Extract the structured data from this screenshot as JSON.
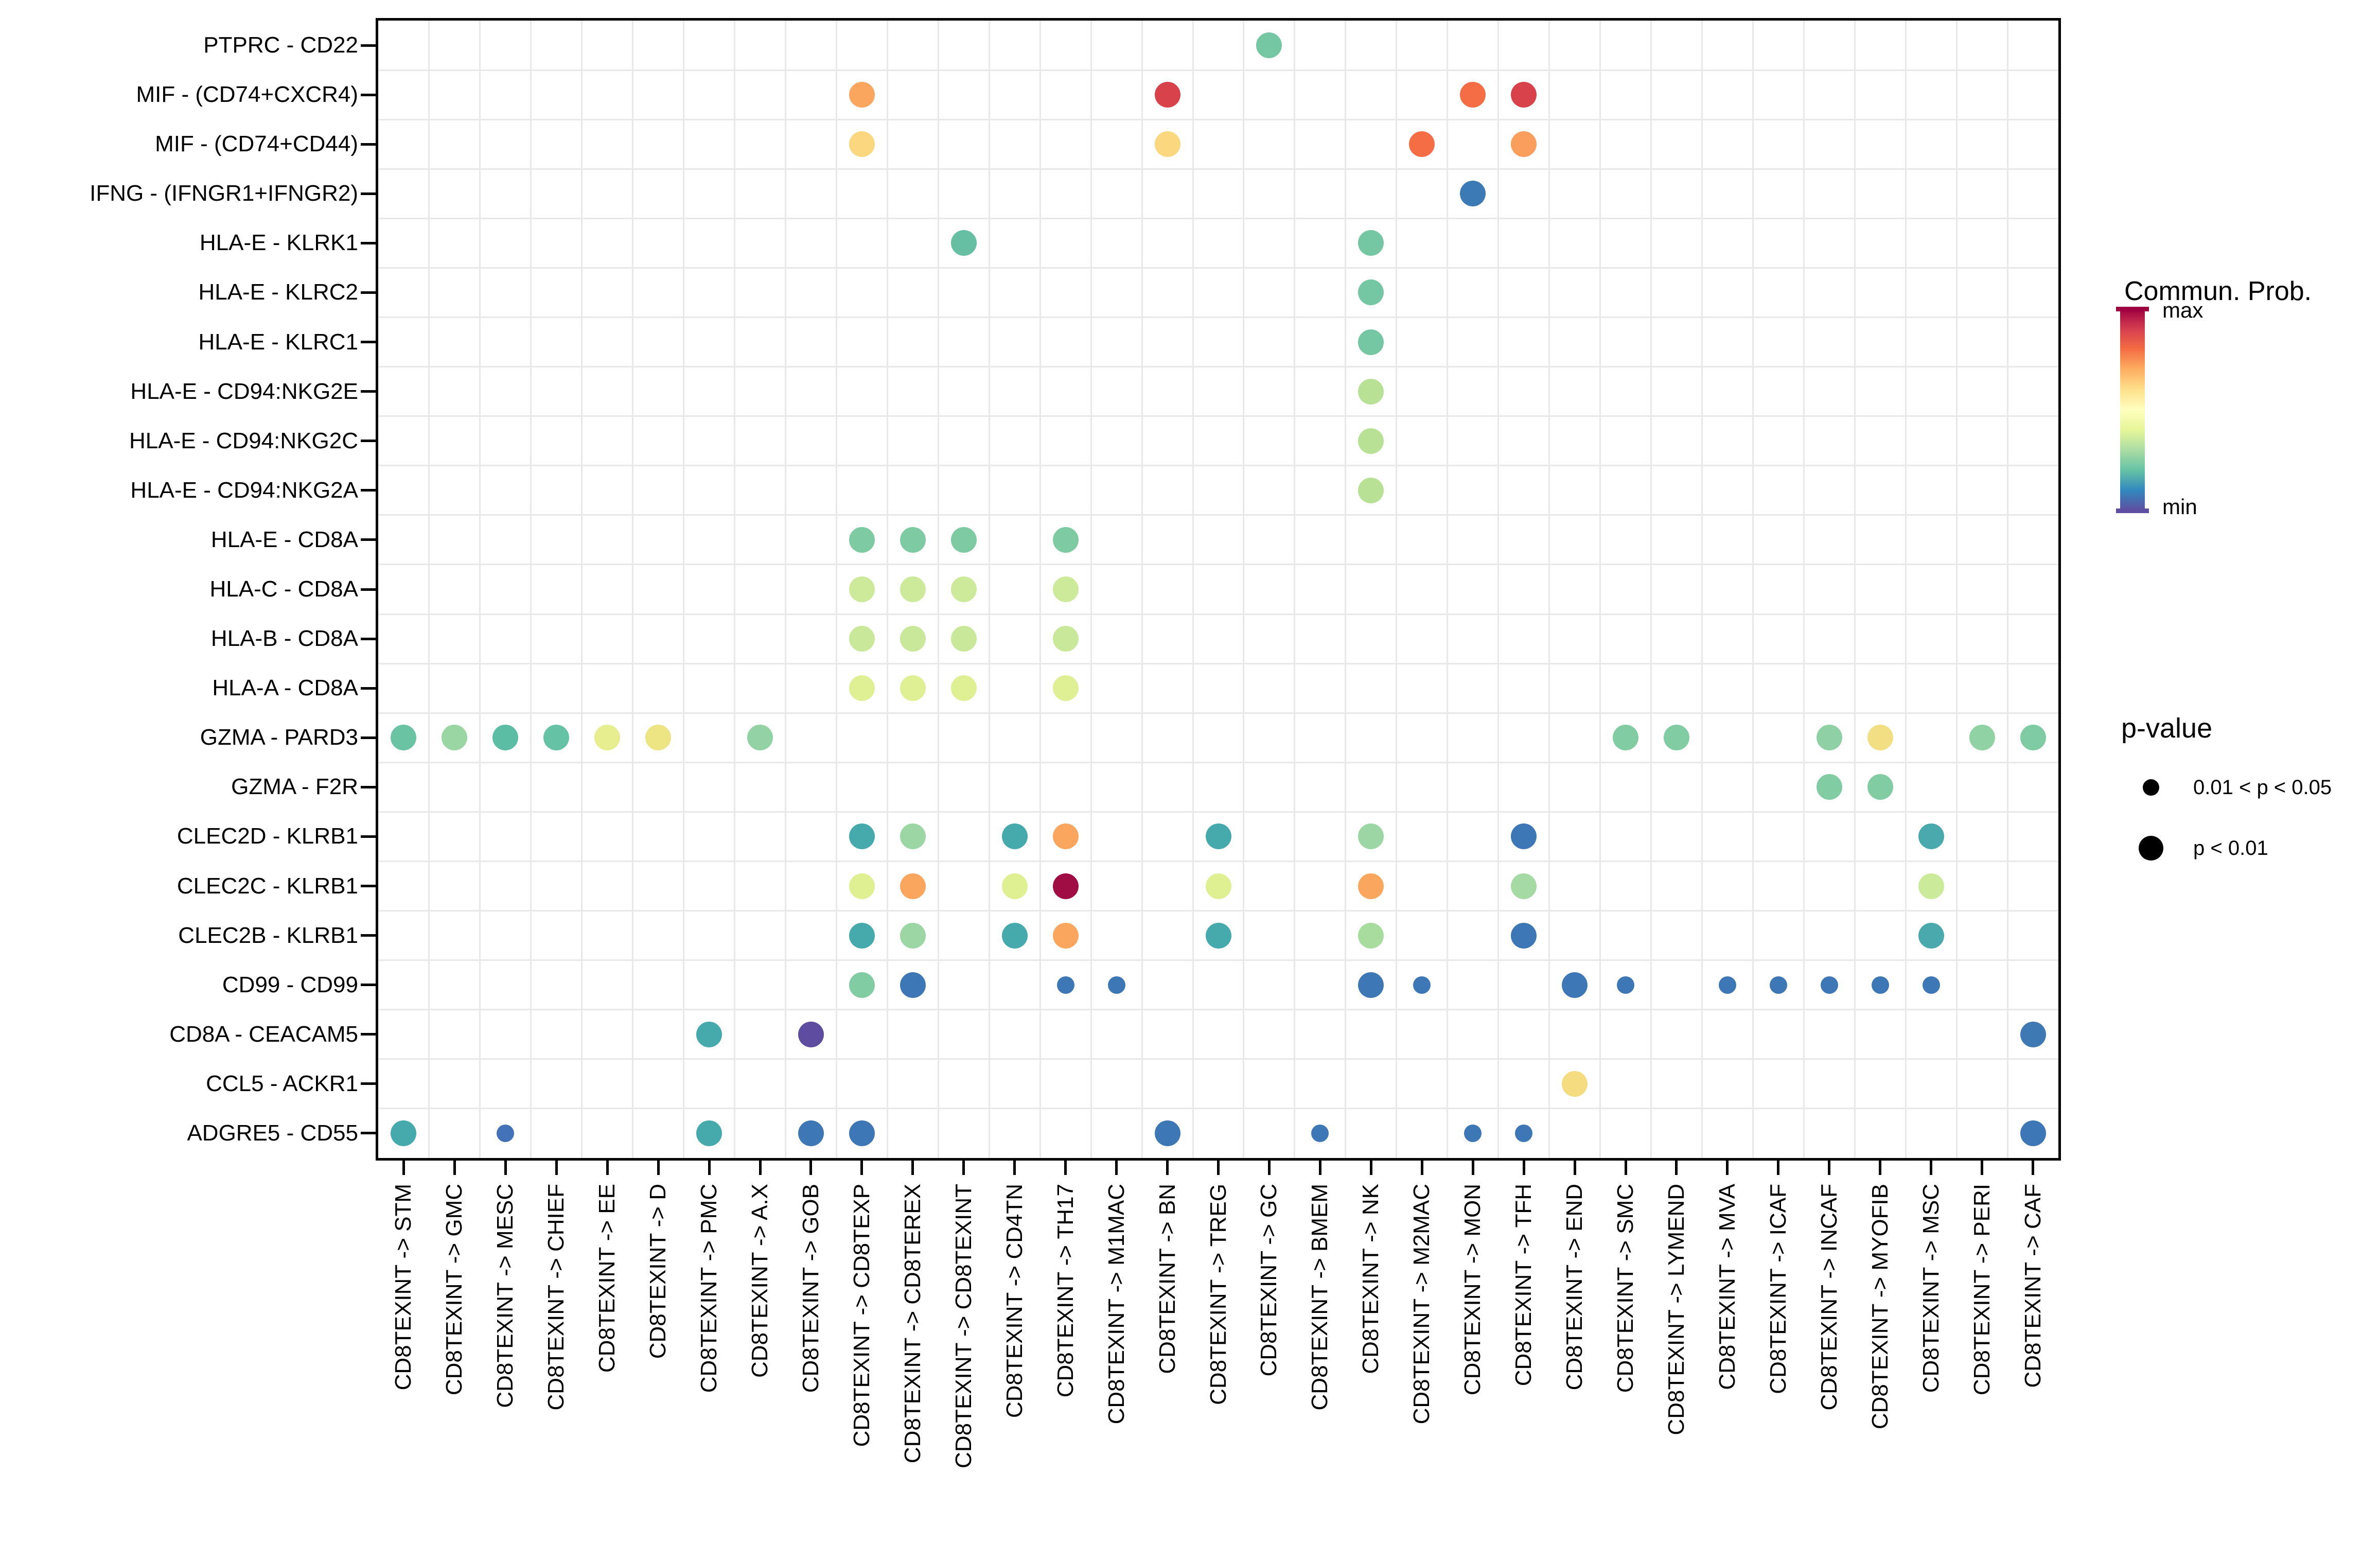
{
  "legend": {
    "colorbar": {
      "title": "Commun. Prob.",
      "max_label": "max",
      "min_label": "min",
      "gradient": [
        "#9E0142",
        "#D53E4F",
        "#F46D43",
        "#FDAE61",
        "#FEE08B",
        "#FFFFBF",
        "#E6F598",
        "#ABDDA4",
        "#66C2A5",
        "#3288BD",
        "#5E4FA2"
      ]
    },
    "pvalue": {
      "title": "p-value",
      "items": [
        {
          "label": "0.01 < p < 0.05",
          "size": "small"
        },
        {
          "label": "p < 0.01",
          "size": "large"
        }
      ]
    }
  },
  "chart_data": {
    "type": "scatter",
    "subtype": "dot-plot-bubble",
    "title": "",
    "xlabel": "",
    "ylabel": "",
    "grid": "on-category-boundaries",
    "x_tick_rotation": 90,
    "size_encoding": {
      "small": "0.01 < p < 0.05",
      "large": "p < 0.01"
    },
    "color_encoding": {
      "scale": "Spectral-reversed",
      "min_label": "min",
      "max_label": "max",
      "title": "Commun. Prob."
    },
    "x_categories": [
      "CD8TEXINT -> STM",
      "CD8TEXINT -> GMC",
      "CD8TEXINT -> MESC",
      "CD8TEXINT -> CHIEF",
      "CD8TEXINT -> EE",
      "CD8TEXINT -> D",
      "CD8TEXINT -> PMC",
      "CD8TEXINT -> A.X",
      "CD8TEXINT -> GOB",
      "CD8TEXINT -> CD8TEXP",
      "CD8TEXINT -> CD8TEREX",
      "CD8TEXINT -> CD8TEXINT",
      "CD8TEXINT -> CD4TN",
      "CD8TEXINT -> TH17",
      "CD8TEXINT -> M1MAC",
      "CD8TEXINT -> BN",
      "CD8TEXINT -> TREG",
      "CD8TEXINT -> GC",
      "CD8TEXINT -> BMEM",
      "CD8TEXINT -> NK",
      "CD8TEXINT -> M2MAC",
      "CD8TEXINT -> MON",
      "CD8TEXINT -> TFH",
      "CD8TEXINT -> END",
      "CD8TEXINT -> SMC",
      "CD8TEXINT -> LYMEND",
      "CD8TEXINT -> MVA",
      "CD8TEXINT -> ICAF",
      "CD8TEXINT -> INCAF",
      "CD8TEXINT -> MYOFIB",
      "CD8TEXINT -> MSC",
      "CD8TEXINT -> PERI",
      "CD8TEXINT -> CAF"
    ],
    "y_categories": [
      "PTPRC - CD22",
      "MIF - (CD74+CXCR4)",
      "MIF - (CD74+CD44)",
      "IFNG - (IFNGR1+IFNGR2)",
      "HLA-E - KLRK1",
      "HLA-E - KLRC2",
      "HLA-E - KLRC1",
      "HLA-E - CD94:NKG2E",
      "HLA-E - CD94:NKG2C",
      "HLA-E - CD94:NKG2A",
      "HLA-E - CD8A",
      "HLA-C - CD8A",
      "HLA-B - CD8A",
      "HLA-A - CD8A",
      "GZMA - PARD3",
      "GZMA - F2R",
      "CLEC2D - KLRB1",
      "CLEC2C - KLRB1",
      "CLEC2B - KLRB1",
      "CD99 - CD99",
      "CD8A - CEACAM5",
      "CCL5 - ACKR1",
      "ADGRE5 - CD55"
    ],
    "points": [
      {
        "row": 0,
        "col": 17,
        "color": "#74C7A2",
        "size": "large"
      },
      {
        "row": 1,
        "col": 9,
        "color": "#FAA65E",
        "size": "large"
      },
      {
        "row": 1,
        "col": 15,
        "color": "#D8434B",
        "size": "large"
      },
      {
        "row": 1,
        "col": 21,
        "color": "#F46D44",
        "size": "large"
      },
      {
        "row": 1,
        "col": 22,
        "color": "#D8434B",
        "size": "large"
      },
      {
        "row": 2,
        "col": 9,
        "color": "#FBD87F",
        "size": "large"
      },
      {
        "row": 2,
        "col": 15,
        "color": "#FBD87F",
        "size": "large"
      },
      {
        "row": 2,
        "col": 20,
        "color": "#F46D44",
        "size": "large"
      },
      {
        "row": 2,
        "col": 22,
        "color": "#F99E5C",
        "size": "large"
      },
      {
        "row": 3,
        "col": 21,
        "color": "#3C7AB6",
        "size": "large"
      },
      {
        "row": 4,
        "col": 11,
        "color": "#66BFA2",
        "size": "large"
      },
      {
        "row": 4,
        "col": 19,
        "color": "#74C7A2",
        "size": "large"
      },
      {
        "row": 5,
        "col": 19,
        "color": "#74C7A2",
        "size": "large"
      },
      {
        "row": 6,
        "col": 19,
        "color": "#74C7A2",
        "size": "large"
      },
      {
        "row": 7,
        "col": 19,
        "color": "#B8E195",
        "size": "large"
      },
      {
        "row": 8,
        "col": 19,
        "color": "#B8E195",
        "size": "large"
      },
      {
        "row": 9,
        "col": 19,
        "color": "#B8E195",
        "size": "large"
      },
      {
        "row": 10,
        "col": 9,
        "color": "#7ECAA3",
        "size": "large"
      },
      {
        "row": 10,
        "col": 10,
        "color": "#7ECAA3",
        "size": "large"
      },
      {
        "row": 10,
        "col": 11,
        "color": "#7ECAA3",
        "size": "large"
      },
      {
        "row": 10,
        "col": 13,
        "color": "#7ECAA3",
        "size": "large"
      },
      {
        "row": 11,
        "col": 9,
        "color": "#CDEA9B",
        "size": "large"
      },
      {
        "row": 11,
        "col": 10,
        "color": "#CDEA9B",
        "size": "large"
      },
      {
        "row": 11,
        "col": 11,
        "color": "#CDEA9B",
        "size": "large"
      },
      {
        "row": 11,
        "col": 13,
        "color": "#CDEA9B",
        "size": "large"
      },
      {
        "row": 12,
        "col": 9,
        "color": "#C9E899",
        "size": "large"
      },
      {
        "row": 12,
        "col": 10,
        "color": "#C9E899",
        "size": "large"
      },
      {
        "row": 12,
        "col": 11,
        "color": "#C9E899",
        "size": "large"
      },
      {
        "row": 12,
        "col": 13,
        "color": "#C9E899",
        "size": "large"
      },
      {
        "row": 13,
        "col": 9,
        "color": "#DFF094",
        "size": "large"
      },
      {
        "row": 13,
        "col": 10,
        "color": "#DFF094",
        "size": "large"
      },
      {
        "row": 13,
        "col": 11,
        "color": "#DFF094",
        "size": "large"
      },
      {
        "row": 13,
        "col": 13,
        "color": "#DFF094",
        "size": "large"
      },
      {
        "row": 14,
        "col": 0,
        "color": "#6AC4A4",
        "size": "large"
      },
      {
        "row": 14,
        "col": 1,
        "color": "#9AD5A4",
        "size": "large"
      },
      {
        "row": 14,
        "col": 2,
        "color": "#5BBEA4",
        "size": "large"
      },
      {
        "row": 14,
        "col": 3,
        "color": "#66C2A5",
        "size": "large"
      },
      {
        "row": 14,
        "col": 4,
        "color": "#E6EE8F",
        "size": "large"
      },
      {
        "row": 14,
        "col": 5,
        "color": "#EDE483",
        "size": "large"
      },
      {
        "row": 14,
        "col": 7,
        "color": "#93D2A4",
        "size": "large"
      },
      {
        "row": 14,
        "col": 24,
        "color": "#82CCA4",
        "size": "large"
      },
      {
        "row": 14,
        "col": 25,
        "color": "#82CCA4",
        "size": "large"
      },
      {
        "row": 14,
        "col": 28,
        "color": "#8FD1A4",
        "size": "large"
      },
      {
        "row": 14,
        "col": 29,
        "color": "#F2DF83",
        "size": "large"
      },
      {
        "row": 14,
        "col": 31,
        "color": "#90D2A4",
        "size": "large"
      },
      {
        "row": 14,
        "col": 32,
        "color": "#7ECBA4",
        "size": "large"
      },
      {
        "row": 15,
        "col": 28,
        "color": "#82CCA4",
        "size": "large"
      },
      {
        "row": 15,
        "col": 29,
        "color": "#82CCA4",
        "size": "large"
      },
      {
        "row": 16,
        "col": 9,
        "color": "#46AAAC",
        "size": "large"
      },
      {
        "row": 16,
        "col": 10,
        "color": "#9CD6A4",
        "size": "large"
      },
      {
        "row": 16,
        "col": 12,
        "color": "#46AAAC",
        "size": "large"
      },
      {
        "row": 16,
        "col": 13,
        "color": "#FAA65E",
        "size": "large"
      },
      {
        "row": 16,
        "col": 16,
        "color": "#46AAAC",
        "size": "large"
      },
      {
        "row": 16,
        "col": 19,
        "color": "#9CD6A4",
        "size": "large"
      },
      {
        "row": 16,
        "col": 22,
        "color": "#3E77B5",
        "size": "large"
      },
      {
        "row": 16,
        "col": 30,
        "color": "#4AA9AD",
        "size": "large"
      },
      {
        "row": 17,
        "col": 9,
        "color": "#DFF093",
        "size": "large"
      },
      {
        "row": 17,
        "col": 10,
        "color": "#FAA65E",
        "size": "large"
      },
      {
        "row": 17,
        "col": 12,
        "color": "#DFF093",
        "size": "large"
      },
      {
        "row": 17,
        "col": 13,
        "color": "#A00C44",
        "size": "large"
      },
      {
        "row": 17,
        "col": 16,
        "color": "#DFF093",
        "size": "large"
      },
      {
        "row": 17,
        "col": 19,
        "color": "#FAA65E",
        "size": "large"
      },
      {
        "row": 17,
        "col": 22,
        "color": "#A5DAA4",
        "size": "large"
      },
      {
        "row": 17,
        "col": 30,
        "color": "#CBEA9A",
        "size": "large"
      },
      {
        "row": 18,
        "col": 9,
        "color": "#46AAAC",
        "size": "large"
      },
      {
        "row": 18,
        "col": 10,
        "color": "#9CD6A4",
        "size": "large"
      },
      {
        "row": 18,
        "col": 12,
        "color": "#46AAAC",
        "size": "large"
      },
      {
        "row": 18,
        "col": 13,
        "color": "#FAA65E",
        "size": "large"
      },
      {
        "row": 18,
        "col": 16,
        "color": "#46AAAC",
        "size": "large"
      },
      {
        "row": 18,
        "col": 19,
        "color": "#A8DB9E",
        "size": "large"
      },
      {
        "row": 18,
        "col": 22,
        "color": "#3E77B5",
        "size": "large"
      },
      {
        "row": 18,
        "col": 30,
        "color": "#4AA9AD",
        "size": "large"
      },
      {
        "row": 19,
        "col": 9,
        "color": "#82CCA4",
        "size": "large"
      },
      {
        "row": 19,
        "col": 10,
        "color": "#3E77B5",
        "size": "large"
      },
      {
        "row": 19,
        "col": 13,
        "color": "#3E77B5",
        "size": "small"
      },
      {
        "row": 19,
        "col": 14,
        "color": "#3E77B5",
        "size": "small"
      },
      {
        "row": 19,
        "col": 19,
        "color": "#3E77B5",
        "size": "large"
      },
      {
        "row": 19,
        "col": 20,
        "color": "#3E77B5",
        "size": "small"
      },
      {
        "row": 19,
        "col": 23,
        "color": "#3E77B5",
        "size": "large"
      },
      {
        "row": 19,
        "col": 24,
        "color": "#3E77B5",
        "size": "small"
      },
      {
        "row": 19,
        "col": 26,
        "color": "#3E77B5",
        "size": "small"
      },
      {
        "row": 19,
        "col": 27,
        "color": "#3E77B5",
        "size": "small"
      },
      {
        "row": 19,
        "col": 28,
        "color": "#3E77B5",
        "size": "small"
      },
      {
        "row": 19,
        "col": 29,
        "color": "#3E77B5",
        "size": "small"
      },
      {
        "row": 19,
        "col": 30,
        "color": "#3E77B5",
        "size": "small"
      },
      {
        "row": 20,
        "col": 6,
        "color": "#46AAAC",
        "size": "large"
      },
      {
        "row": 20,
        "col": 8,
        "color": "#5D4C9F",
        "size": "large"
      },
      {
        "row": 20,
        "col": 32,
        "color": "#3E79B4",
        "size": "large"
      },
      {
        "row": 21,
        "col": 23,
        "color": "#F5DC80",
        "size": "large"
      },
      {
        "row": 22,
        "col": 0,
        "color": "#46AAAC",
        "size": "large"
      },
      {
        "row": 22,
        "col": 2,
        "color": "#4472B8",
        "size": "small"
      },
      {
        "row": 22,
        "col": 6,
        "color": "#46AAAC",
        "size": "large"
      },
      {
        "row": 22,
        "col": 8,
        "color": "#3E77B5",
        "size": "large"
      },
      {
        "row": 22,
        "col": 9,
        "color": "#3E77B5",
        "size": "large"
      },
      {
        "row": 22,
        "col": 15,
        "color": "#3E77B5",
        "size": "large"
      },
      {
        "row": 22,
        "col": 18,
        "color": "#3E77B5",
        "size": "small"
      },
      {
        "row": 22,
        "col": 21,
        "color": "#3E77B5",
        "size": "small"
      },
      {
        "row": 22,
        "col": 22,
        "color": "#3E77B5",
        "size": "small"
      },
      {
        "row": 22,
        "col": 32,
        "color": "#3E77B5",
        "size": "large"
      }
    ]
  }
}
